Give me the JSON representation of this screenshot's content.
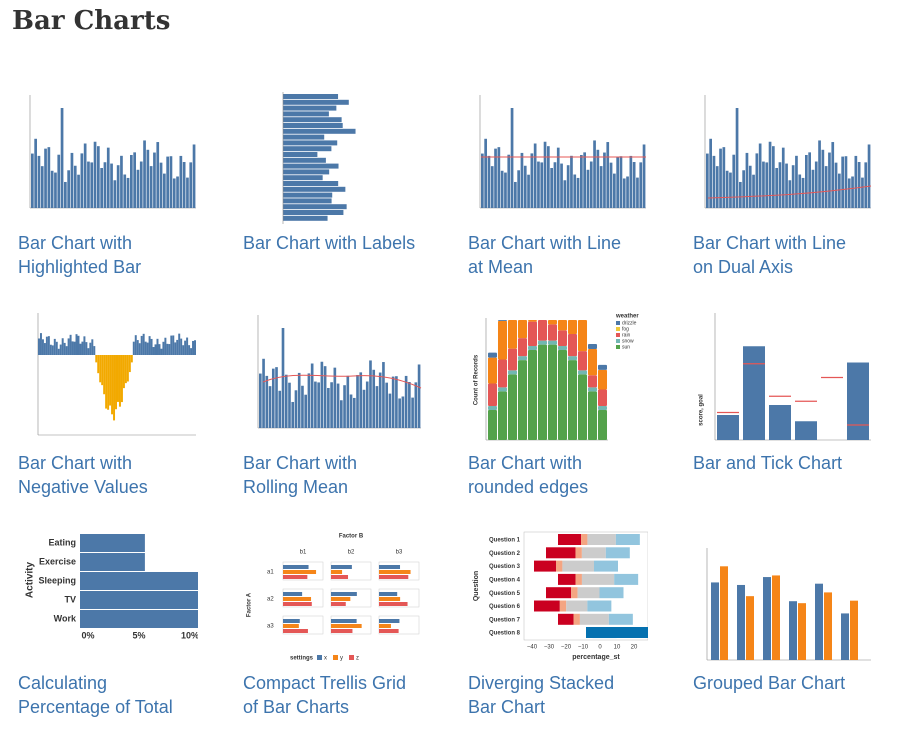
{
  "header": {
    "title": "Bar Charts"
  },
  "cards": [
    {
      "title_lines": [
        "Bar Chart with",
        "Highlighted Bar"
      ]
    },
    {
      "title_lines": [
        "Bar Chart with Labels"
      ]
    },
    {
      "title_lines": [
        "Bar Chart with Line",
        "at Mean"
      ]
    },
    {
      "title_lines": [
        "Bar Chart with Line",
        "on Dual Axis"
      ]
    },
    {
      "title_lines": [
        "Bar Chart with",
        "Negative Values"
      ]
    },
    {
      "title_lines": [
        "Bar Chart with",
        "Rolling Mean"
      ]
    },
    {
      "title_lines": [
        "Bar Chart with",
        "rounded edges"
      ],
      "axis_title": "Count of Records",
      "legend_title": "weather",
      "legend": [
        "drizzle",
        "fog",
        "rain",
        "snow",
        "sun"
      ]
    },
    {
      "title_lines": [
        "Bar and Tick Chart"
      ],
      "axis_title": "score, goal"
    },
    {
      "title_lines": [
        "Calculating",
        "Percentage of Total"
      ],
      "axis_title": "Activity",
      "labels": [
        "Eating",
        "Exercise",
        "Sleeping",
        "TV",
        "Work"
      ],
      "ticks": [
        "0%",
        "5%",
        "10%"
      ]
    },
    {
      "title_lines": [
        "Compact Trellis Grid",
        "of Bar Charts"
      ],
      "column_title": "Factor B",
      "columns": [
        "b1",
        "b2",
        "b3"
      ],
      "row_title": "Factor A",
      "rows": [
        "a1",
        "a2",
        "a3"
      ],
      "legend_title": "settings",
      "legend": [
        "x",
        "y",
        "z"
      ]
    },
    {
      "title_lines": [
        "Diverging Stacked",
        "Bar Chart"
      ],
      "axis_title": "Question",
      "labels": [
        "Question 1",
        "Question 2",
        "Question 3",
        "Question 4",
        "Question 5",
        "Question 6",
        "Question 7",
        "Question 8"
      ],
      "ticks": [
        "−40",
        "−30",
        "−20",
        "−10",
        "0",
        "10",
        "20"
      ],
      "x_title": "percentage_st"
    },
    {
      "title_lines": [
        "Grouped Bar Chart"
      ]
    }
  ]
}
